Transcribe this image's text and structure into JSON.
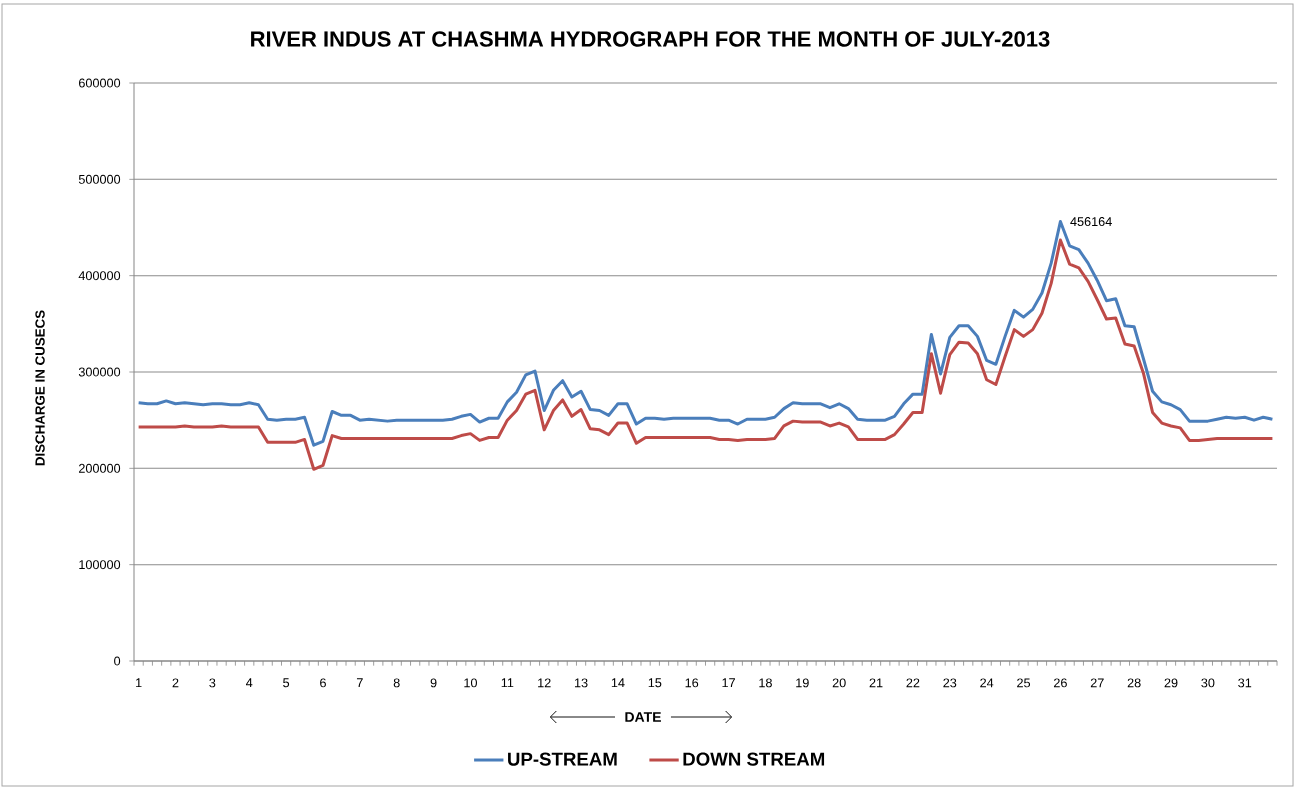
{
  "chart_data": {
    "type": "line",
    "title": "RIVER INDUS AT CHASHMA HYDROGRAPH FOR THE MONTH OF JULY-2013",
    "xlabel": "DATE",
    "ylabel": "DISCHARGE IN CUSECS",
    "categories": [
      "1",
      null,
      null,
      null,
      "2",
      null,
      null,
      null,
      "3",
      null,
      null,
      null,
      "4",
      null,
      null,
      null,
      "5",
      null,
      null,
      null,
      "6",
      null,
      null,
      null,
      "7",
      null,
      null,
      null,
      "8",
      null,
      null,
      null,
      "9",
      null,
      null,
      null,
      "10",
      null,
      null,
      null,
      "11",
      null,
      null,
      null,
      "12",
      null,
      null,
      null,
      "13",
      null,
      null,
      null,
      "14",
      null,
      null,
      null,
      "15",
      null,
      null,
      null,
      "16",
      null,
      null,
      null,
      "17",
      null,
      null,
      null,
      "18",
      null,
      null,
      null,
      "19",
      null,
      null,
      null,
      "20",
      null,
      null,
      null,
      "21",
      null,
      null,
      null,
      "22",
      null,
      null,
      null,
      "23",
      null,
      null,
      null,
      "24",
      null,
      null,
      null,
      "25",
      null,
      null,
      null,
      "26",
      null,
      null,
      null,
      "27",
      null,
      null,
      null,
      "28",
      null,
      null,
      null,
      "29",
      null,
      null,
      null,
      "30",
      null,
      null,
      null,
      "31",
      null,
      null,
      null
    ],
    "ylim": [
      0,
      600000
    ],
    "yticks": [
      0,
      100000,
      200000,
      300000,
      400000,
      500000,
      600000
    ],
    "grid": "y",
    "legend": "bottom",
    "line_style": "solid",
    "series": [
      {
        "name": "UP-STREAM",
        "color": "#4a7ebb",
        "values": [
          268000,
          267000,
          267000,
          270000,
          267000,
          268000,
          267000,
          266000,
          267000,
          267000,
          266000,
          266000,
          268000,
          266000,
          251000,
          250000,
          251000,
          251000,
          253000,
          224000,
          228000,
          259000,
          255000,
          255000,
          250000,
          251000,
          250000,
          249000,
          250000,
          250000,
          250000,
          250000,
          250000,
          250000,
          251000,
          254000,
          256000,
          248000,
          252000,
          252000,
          269000,
          279000,
          297000,
          301000,
          260000,
          281000,
          291000,
          274000,
          280000,
          261000,
          260000,
          255000,
          267000,
          267000,
          246000,
          252000,
          252000,
          251000,
          252000,
          252000,
          252000,
          252000,
          252000,
          250000,
          250000,
          246000,
          251000,
          251000,
          251000,
          253000,
          262000,
          268000,
          267000,
          267000,
          267000,
          263000,
          267000,
          262000,
          251000,
          250000,
          250000,
          250000,
          254000,
          267000,
          277000,
          277000,
          339000,
          298000,
          336000,
          348000,
          348000,
          337000,
          312000,
          308000,
          337000,
          364000,
          357000,
          365000,
          382000,
          413000,
          456164,
          431000,
          427000,
          413000,
          395000,
          374000,
          376000,
          348000,
          347000,
          314000,
          280000,
          269000,
          266000,
          261000,
          249000,
          249000,
          249000,
          251000,
          253000,
          252000,
          253000,
          250000,
          253000,
          251000
        ],
        "value_labels": [
          null,
          null,
          null,
          null,
          null,
          null,
          null,
          null,
          null,
          null,
          null,
          null,
          null,
          null,
          null,
          null,
          null,
          null,
          null,
          null,
          null,
          null,
          null,
          null,
          null,
          null,
          null,
          null,
          null,
          null,
          null,
          null,
          null,
          null,
          null,
          null,
          null,
          null,
          null,
          null,
          null,
          null,
          null,
          null,
          null,
          null,
          null,
          null,
          null,
          null,
          null,
          null,
          null,
          null,
          null,
          null,
          null,
          null,
          null,
          null,
          null,
          null,
          null,
          null,
          null,
          null,
          null,
          null,
          null,
          null,
          null,
          null,
          null,
          null,
          null,
          null,
          null,
          null,
          null,
          null,
          null,
          null,
          null,
          null,
          null,
          null,
          null,
          null,
          null,
          null,
          null,
          null,
          null,
          null,
          null,
          null,
          null,
          null,
          null,
          null,
          "456164",
          null,
          null,
          null,
          null,
          null,
          null,
          null,
          null,
          null,
          null,
          null,
          null,
          null,
          null,
          null,
          null,
          null,
          null,
          null,
          null,
          null,
          null,
          null
        ]
      },
      {
        "name": "DOWN STREAM",
        "color": "#be4b48",
        "values": [
          243000,
          243000,
          243000,
          243000,
          243000,
          244000,
          243000,
          243000,
          243000,
          244000,
          243000,
          243000,
          243000,
          243000,
          227000,
          227000,
          227000,
          227000,
          230000,
          199000,
          203000,
          234000,
          231000,
          231000,
          231000,
          231000,
          231000,
          231000,
          231000,
          231000,
          231000,
          231000,
          231000,
          231000,
          231000,
          234000,
          236000,
          229000,
          232000,
          232000,
          250000,
          260000,
          277000,
          281000,
          240000,
          260000,
          271000,
          254000,
          261000,
          241000,
          240000,
          235000,
          247000,
          247000,
          226000,
          232000,
          232000,
          232000,
          232000,
          232000,
          232000,
          232000,
          232000,
          230000,
          230000,
          229000,
          230000,
          230000,
          230000,
          231000,
          244000,
          249000,
          248000,
          248000,
          248000,
          244000,
          247000,
          243000,
          230000,
          230000,
          230000,
          230000,
          235000,
          246000,
          258000,
          258000,
          319000,
          278000,
          318000,
          331000,
          330000,
          319000,
          292000,
          287000,
          316000,
          344000,
          337000,
          344000,
          361000,
          392000,
          437000,
          412000,
          408000,
          394000,
          375000,
          355000,
          356000,
          329000,
          327000,
          299000,
          258000,
          247000,
          244000,
          242000,
          229000,
          229000,
          230000,
          231000,
          231000,
          231000,
          231000,
          231000,
          231000,
          231000
        ]
      }
    ]
  }
}
